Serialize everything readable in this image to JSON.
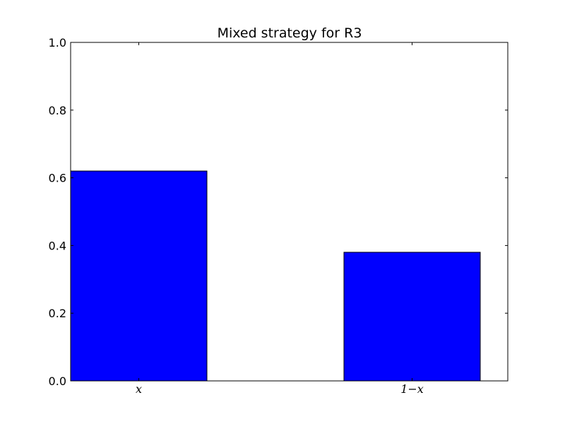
{
  "chart_data": {
    "type": "bar",
    "title": "Mixed strategy for R3",
    "categories": [
      "x",
      "1−x"
    ],
    "values": [
      0.62,
      0.38
    ],
    "xlabel": "",
    "ylabel": "",
    "ylim": [
      0,
      1.0
    ],
    "yticks": [
      "0.0",
      "0.2",
      "0.4",
      "0.6",
      "0.8",
      "1.0"
    ],
    "grid": false,
    "legend": "none",
    "colors": {
      "bar_fill": "#0000ff",
      "bar_edge": "#000000",
      "axes": "#000000",
      "background": "#ffffff"
    }
  }
}
